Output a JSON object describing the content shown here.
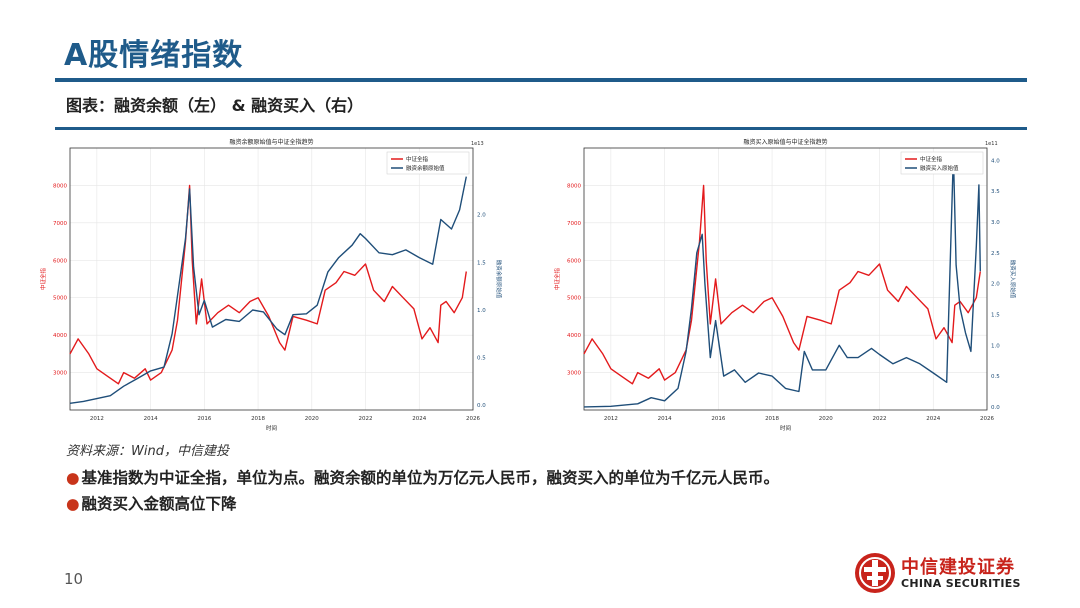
{
  "title": "A股情绪指数",
  "subtitle": "图表：融资余额（左） & 融资买入（右）",
  "source": "资料来源：Wind，中信建投",
  "bullets": [
    "基准指数为中证全指，单位为点。融资余额的单位为万亿元人民币，融资买入的单位为千亿元人民币。",
    "融资买入金额高位下降"
  ],
  "page_number": "10",
  "logo": {
    "name": "中信建投证券",
    "english": "CHINA SECURITIES"
  },
  "colors": {
    "brand_blue": "#1f5b8a",
    "index_red": "#e31a1c",
    "series_blue": "#1f4e79",
    "bullet_red": "#c8341a"
  },
  "chart_data": [
    {
      "type": "line",
      "title": "融资余额原始值与中证全指趋势",
      "xlabel": "时间",
      "ylabel_left": "中证全指",
      "ylabel_right": "融资余额原始值",
      "right_axis_exponent": "1e13",
      "xlim": [
        2011,
        2026
      ],
      "x_ticks": [
        "2012",
        "2014",
        "2016",
        "2018",
        "2020",
        "2022",
        "2024",
        "2026"
      ],
      "ylim_left": [
        2000,
        9000
      ],
      "y_ticks_left": [
        "3000",
        "4000",
        "5000",
        "6000",
        "7000",
        "8000"
      ],
      "ylim_right": [
        -0.05,
        2.7
      ],
      "y_ticks_right": [
        "0.0",
        "0.5",
        "1.0",
        "1.5",
        "2.0"
      ],
      "legend": [
        "中证全指",
        "融资余额原始值"
      ],
      "legend_position": "top-right",
      "grid": true,
      "series": [
        {
          "name": "中证全指",
          "axis": "left",
          "color": "#e31a1c",
          "points": [
            [
              2011.0,
              3500
            ],
            [
              2011.3,
              3900
            ],
            [
              2011.7,
              3500
            ],
            [
              2012.0,
              3100
            ],
            [
              2012.4,
              2900
            ],
            [
              2012.8,
              2700
            ],
            [
              2013.0,
              3000
            ],
            [
              2013.4,
              2850
            ],
            [
              2013.8,
              3100
            ],
            [
              2014.0,
              2800
            ],
            [
              2014.4,
              3000
            ],
            [
              2014.8,
              3600
            ],
            [
              2015.0,
              4400
            ],
            [
              2015.3,
              6500
            ],
            [
              2015.45,
              8000
            ],
            [
              2015.55,
              6000
            ],
            [
              2015.7,
              4300
            ],
            [
              2015.9,
              5500
            ],
            [
              2016.1,
              4300
            ],
            [
              2016.5,
              4600
            ],
            [
              2016.9,
              4800
            ],
            [
              2017.3,
              4600
            ],
            [
              2017.7,
              4900
            ],
            [
              2018.0,
              5000
            ],
            [
              2018.4,
              4500
            ],
            [
              2018.8,
              3800
            ],
            [
              2019.0,
              3600
            ],
            [
              2019.3,
              4500
            ],
            [
              2019.8,
              4400
            ],
            [
              2020.2,
              4300
            ],
            [
              2020.5,
              5200
            ],
            [
              2020.9,
              5400
            ],
            [
              2021.2,
              5700
            ],
            [
              2021.6,
              5600
            ],
            [
              2022.0,
              5900
            ],
            [
              2022.3,
              5200
            ],
            [
              2022.7,
              4900
            ],
            [
              2023.0,
              5300
            ],
            [
              2023.4,
              5000
            ],
            [
              2023.8,
              4700
            ],
            [
              2024.1,
              3900
            ],
            [
              2024.4,
              4200
            ],
            [
              2024.7,
              3800
            ],
            [
              2024.8,
              4800
            ],
            [
              2025.0,
              4900
            ],
            [
              2025.3,
              4600
            ],
            [
              2025.6,
              5000
            ],
            [
              2025.75,
              5700
            ]
          ]
        },
        {
          "name": "融资余额原始值",
          "axis": "right",
          "color": "#1f4e79",
          "points": [
            [
              2011.0,
              0.02
            ],
            [
              2011.5,
              0.04
            ],
            [
              2012.0,
              0.07
            ],
            [
              2012.5,
              0.1
            ],
            [
              2013.0,
              0.2
            ],
            [
              2013.5,
              0.28
            ],
            [
              2014.0,
              0.36
            ],
            [
              2014.5,
              0.4
            ],
            [
              2014.8,
              0.75
            ],
            [
              2015.0,
              1.15
            ],
            [
              2015.3,
              1.75
            ],
            [
              2015.45,
              2.27
            ],
            [
              2015.6,
              1.45
            ],
            [
              2015.8,
              0.95
            ],
            [
              2016.0,
              1.1
            ],
            [
              2016.3,
              0.82
            ],
            [
              2016.8,
              0.9
            ],
            [
              2017.3,
              0.88
            ],
            [
              2017.8,
              1.0
            ],
            [
              2018.2,
              0.98
            ],
            [
              2018.7,
              0.8
            ],
            [
              2019.0,
              0.74
            ],
            [
              2019.3,
              0.95
            ],
            [
              2019.8,
              0.96
            ],
            [
              2020.2,
              1.05
            ],
            [
              2020.6,
              1.4
            ],
            [
              2021.0,
              1.55
            ],
            [
              2021.5,
              1.68
            ],
            [
              2021.8,
              1.8
            ],
            [
              2022.0,
              1.75
            ],
            [
              2022.5,
              1.6
            ],
            [
              2023.0,
              1.58
            ],
            [
              2023.5,
              1.63
            ],
            [
              2024.0,
              1.55
            ],
            [
              2024.5,
              1.48
            ],
            [
              2024.8,
              1.95
            ],
            [
              2025.2,
              1.85
            ],
            [
              2025.5,
              2.05
            ],
            [
              2025.75,
              2.4
            ]
          ]
        }
      ]
    },
    {
      "type": "line",
      "title": "融资买入原始值与中证全指趋势",
      "xlabel": "时间",
      "ylabel_left": "中证全指",
      "ylabel_right": "融资买入原始值",
      "right_axis_exponent": "1e11",
      "xlim": [
        2011,
        2026
      ],
      "x_ticks": [
        "2012",
        "2014",
        "2016",
        "2018",
        "2020",
        "2022",
        "2024",
        "2026"
      ],
      "ylim_left": [
        2000,
        9000
      ],
      "y_ticks_left": [
        "3000",
        "4000",
        "5000",
        "6000",
        "7000",
        "8000"
      ],
      "ylim_right": [
        -0.05,
        4.2
      ],
      "y_ticks_right": [
        "0.0",
        "0.5",
        "1.0",
        "1.5",
        "2.0",
        "2.5",
        "3.0",
        "3.5",
        "4.0"
      ],
      "legend": [
        "中证全指",
        "融资买入原始值"
      ],
      "legend_position": "top-right",
      "grid": true,
      "series": [
        {
          "name": "中证全指",
          "axis": "left",
          "color": "#e31a1c",
          "points": [
            [
              2011.0,
              3500
            ],
            [
              2011.3,
              3900
            ],
            [
              2011.7,
              3500
            ],
            [
              2012.0,
              3100
            ],
            [
              2012.4,
              2900
            ],
            [
              2012.8,
              2700
            ],
            [
              2013.0,
              3000
            ],
            [
              2013.4,
              2850
            ],
            [
              2013.8,
              3100
            ],
            [
              2014.0,
              2800
            ],
            [
              2014.4,
              3000
            ],
            [
              2014.8,
              3600
            ],
            [
              2015.0,
              4400
            ],
            [
              2015.3,
              6500
            ],
            [
              2015.45,
              8000
            ],
            [
              2015.55,
              6000
            ],
            [
              2015.7,
              4300
            ],
            [
              2015.9,
              5500
            ],
            [
              2016.1,
              4300
            ],
            [
              2016.5,
              4600
            ],
            [
              2016.9,
              4800
            ],
            [
              2017.3,
              4600
            ],
            [
              2017.7,
              4900
            ],
            [
              2018.0,
              5000
            ],
            [
              2018.4,
              4500
            ],
            [
              2018.8,
              3800
            ],
            [
              2019.0,
              3600
            ],
            [
              2019.3,
              4500
            ],
            [
              2019.8,
              4400
            ],
            [
              2020.2,
              4300
            ],
            [
              2020.5,
              5200
            ],
            [
              2020.9,
              5400
            ],
            [
              2021.2,
              5700
            ],
            [
              2021.6,
              5600
            ],
            [
              2022.0,
              5900
            ],
            [
              2022.3,
              5200
            ],
            [
              2022.7,
              4900
            ],
            [
              2023.0,
              5300
            ],
            [
              2023.4,
              5000
            ],
            [
              2023.8,
              4700
            ],
            [
              2024.1,
              3900
            ],
            [
              2024.4,
              4200
            ],
            [
              2024.7,
              3800
            ],
            [
              2024.8,
              4800
            ],
            [
              2025.0,
              4900
            ],
            [
              2025.3,
              4600
            ],
            [
              2025.6,
              5000
            ],
            [
              2025.75,
              5700
            ]
          ]
        },
        {
          "name": "融资买入原始值",
          "axis": "right",
          "color": "#1f4e79",
          "points": [
            [
              2011.0,
              0.0
            ],
            [
              2012.0,
              0.01
            ],
            [
              2013.0,
              0.05
            ],
            [
              2013.5,
              0.15
            ],
            [
              2014.0,
              0.1
            ],
            [
              2014.5,
              0.3
            ],
            [
              2014.8,
              0.9
            ],
            [
              2015.0,
              1.6
            ],
            [
              2015.2,
              2.5
            ],
            [
              2015.4,
              2.8
            ],
            [
              2015.5,
              2.0
            ],
            [
              2015.7,
              0.8
            ],
            [
              2015.9,
              1.4
            ],
            [
              2016.2,
              0.5
            ],
            [
              2016.6,
              0.6
            ],
            [
              2017.0,
              0.4
            ],
            [
              2017.5,
              0.55
            ],
            [
              2018.0,
              0.5
            ],
            [
              2018.5,
              0.3
            ],
            [
              2019.0,
              0.25
            ],
            [
              2019.2,
              0.9
            ],
            [
              2019.5,
              0.6
            ],
            [
              2020.0,
              0.6
            ],
            [
              2020.5,
              1.0
            ],
            [
              2020.8,
              0.8
            ],
            [
              2021.2,
              0.8
            ],
            [
              2021.7,
              0.95
            ],
            [
              2022.0,
              0.85
            ],
            [
              2022.5,
              0.7
            ],
            [
              2023.0,
              0.8
            ],
            [
              2023.5,
              0.7
            ],
            [
              2024.0,
              0.55
            ],
            [
              2024.5,
              0.4
            ],
            [
              2024.75,
              4.1
            ],
            [
              2024.85,
              2.3
            ],
            [
              2025.0,
              1.6
            ],
            [
              2025.2,
              1.2
            ],
            [
              2025.4,
              0.9
            ],
            [
              2025.6,
              2.6
            ],
            [
              2025.7,
              3.6
            ],
            [
              2025.75,
              2.2
            ]
          ]
        }
      ]
    }
  ]
}
